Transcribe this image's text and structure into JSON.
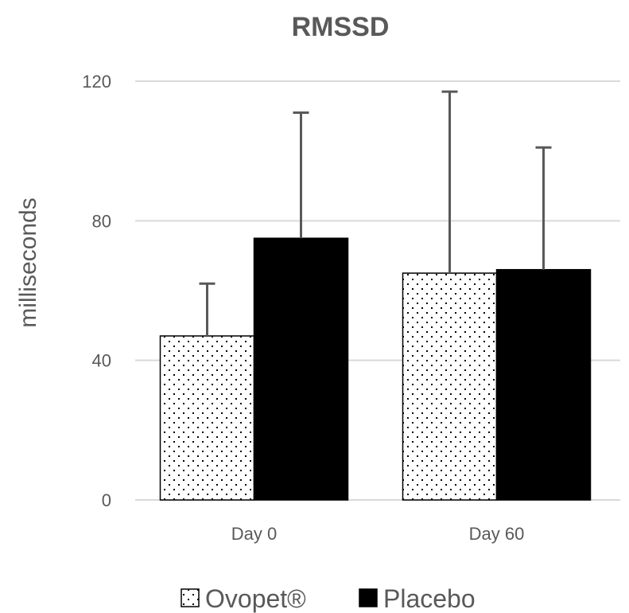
{
  "chart_data": {
    "type": "bar",
    "title": "RMSSD",
    "xlabel": "",
    "ylabel": "milliseconds",
    "categories": [
      "Day 0",
      "Day 60"
    ],
    "series": [
      {
        "name": "Ovopet®",
        "values": [
          47,
          65
        ],
        "error_upper": [
          62,
          117
        ],
        "pattern": "dotted"
      },
      {
        "name": "Placebo",
        "values": [
          75,
          66
        ],
        "error_upper": [
          111,
          101
        ],
        "color": "#000000"
      }
    ],
    "ylim": [
      0,
      120
    ],
    "yticks": [
      0,
      40,
      80,
      120
    ],
    "grid": true,
    "legend_position": "bottom"
  },
  "colors": {
    "text": "#595959",
    "grid": "#d9d9d9",
    "error_bar": "#595959",
    "bar_outline": "#000000"
  }
}
